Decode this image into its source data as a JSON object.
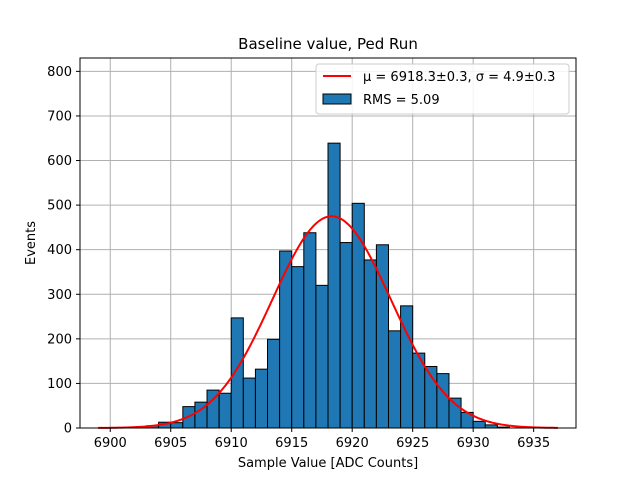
{
  "chart_data": {
    "type": "bar",
    "title": "Baseline value, Ped Run",
    "xlabel": "Sample Value [ADC Counts]",
    "ylabel": "Events",
    "xlim": [
      6897.5,
      6938.5
    ],
    "ylim": [
      0,
      830
    ],
    "xticks": [
      6900,
      6905,
      6910,
      6915,
      6920,
      6925,
      6930,
      6935
    ],
    "yticks": [
      0,
      100,
      200,
      300,
      400,
      500,
      600,
      700,
      800
    ],
    "grid": true,
    "legend_position": "top-right",
    "colors": {
      "bar_fill": "#1f77b4",
      "bar_edge": "#000000",
      "fit_line": "#ff0000",
      "grid": "#b0b0b0"
    },
    "histogram": {
      "name": "RMS = 5.09",
      "bin_width": 1,
      "bins": [
        {
          "x": 6899,
          "count": 0
        },
        {
          "x": 6900,
          "count": 0
        },
        {
          "x": 6901,
          "count": 0
        },
        {
          "x": 6902,
          "count": 2
        },
        {
          "x": 6903,
          "count": 5
        },
        {
          "x": 6904,
          "count": 13
        },
        {
          "x": 6905,
          "count": 12
        },
        {
          "x": 6906,
          "count": 48
        },
        {
          "x": 6907,
          "count": 58
        },
        {
          "x": 6908,
          "count": 85
        },
        {
          "x": 6909,
          "count": 78
        },
        {
          "x": 6910,
          "count": 247
        },
        {
          "x": 6911,
          "count": 112
        },
        {
          "x": 6912,
          "count": 132
        },
        {
          "x": 6913,
          "count": 199
        },
        {
          "x": 6914,
          "count": 397
        },
        {
          "x": 6915,
          "count": 362
        },
        {
          "x": 6916,
          "count": 438
        },
        {
          "x": 6917,
          "count": 320
        },
        {
          "x": 6918,
          "count": 639
        },
        {
          "x": 6919,
          "count": 416
        },
        {
          "x": 6920,
          "count": 504
        },
        {
          "x": 6921,
          "count": 377
        },
        {
          "x": 6922,
          "count": 411
        },
        {
          "x": 6923,
          "count": 218
        },
        {
          "x": 6924,
          "count": 274
        },
        {
          "x": 6925,
          "count": 168
        },
        {
          "x": 6926,
          "count": 138
        },
        {
          "x": 6927,
          "count": 122
        },
        {
          "x": 6928,
          "count": 67
        },
        {
          "x": 6929,
          "count": 35
        },
        {
          "x": 6930,
          "count": 15
        },
        {
          "x": 6931,
          "count": 7
        },
        {
          "x": 6932,
          "count": 2
        },
        {
          "x": 6933,
          "count": 0
        },
        {
          "x": 6934,
          "count": 0
        },
        {
          "x": 6935,
          "count": 0
        },
        {
          "x": 6936,
          "count": 0
        }
      ]
    },
    "fit": {
      "name": "μ = 6918.3±0.3, σ = 4.9±0.3",
      "mu": 6918.3,
      "sigma": 4.9,
      "amplitude": 475,
      "x_range": [
        6899,
        6937
      ]
    }
  }
}
